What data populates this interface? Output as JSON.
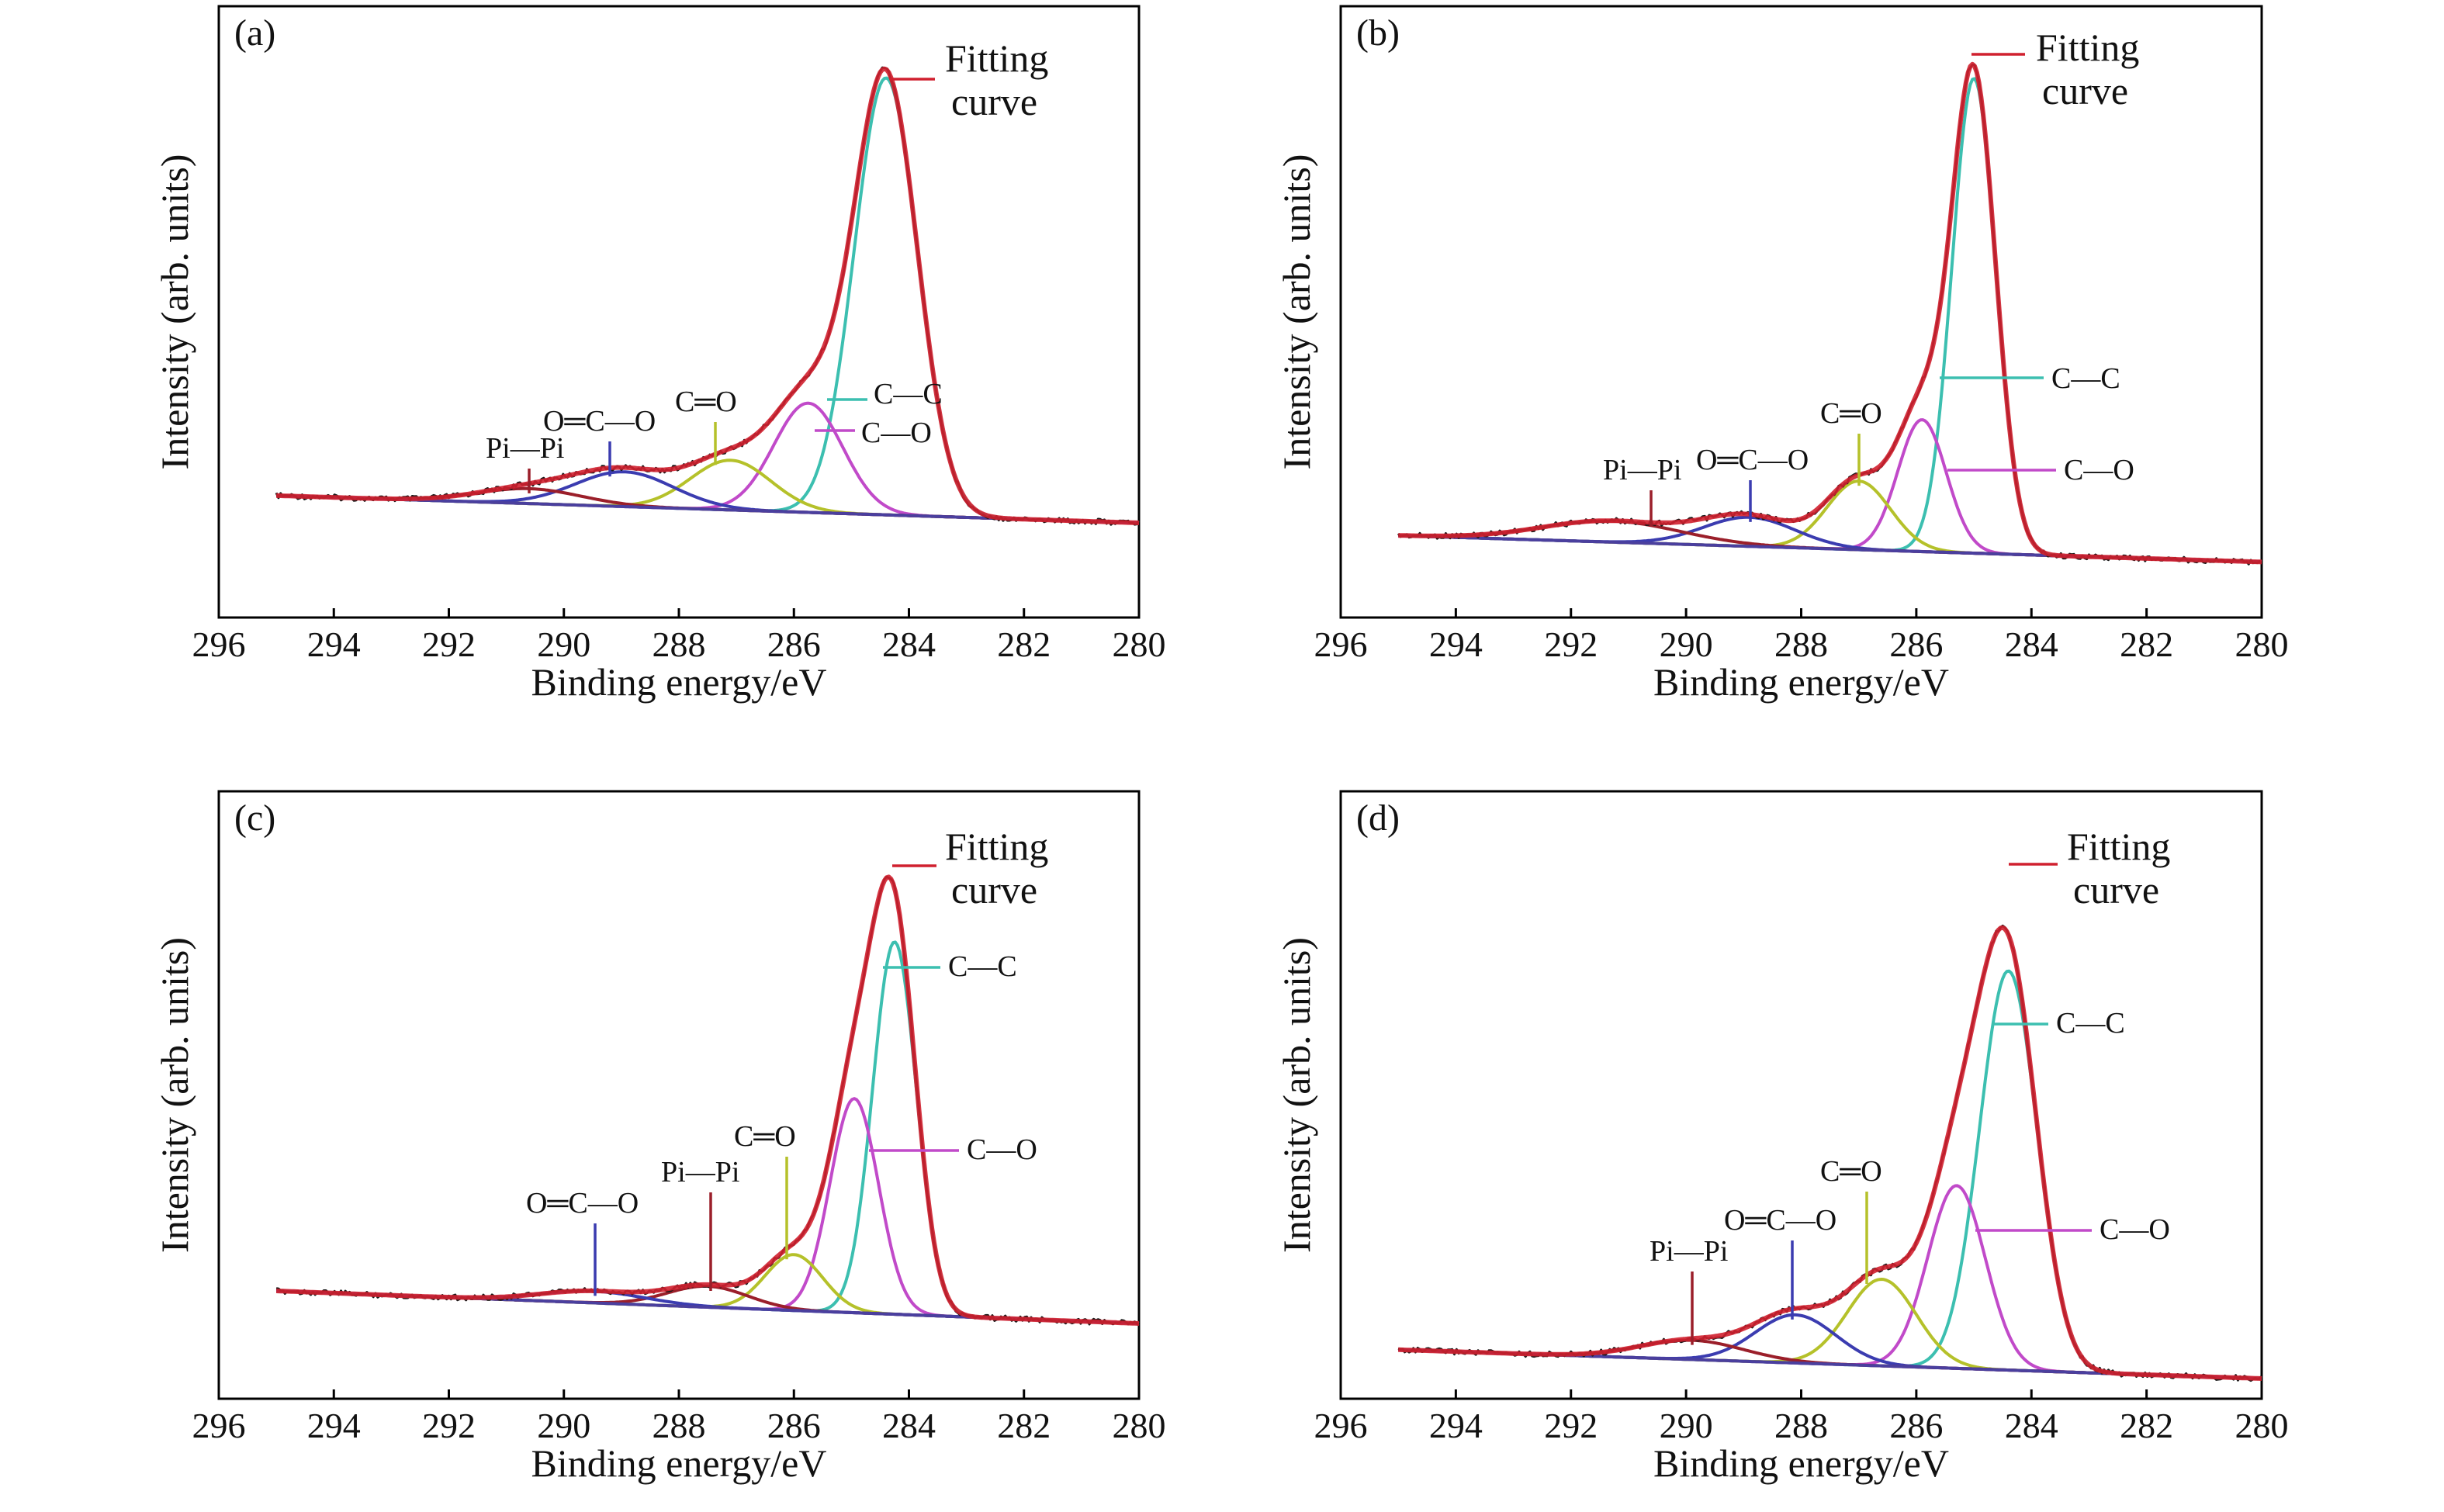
{
  "x_axis": {
    "label": "Binding energy/eV",
    "min": 280,
    "max": 296,
    "reversed": true,
    "ticks": [
      296,
      294,
      292,
      290,
      288,
      286,
      284,
      282,
      280
    ]
  },
  "y_axis": {
    "label": "Intensity (arb. units)"
  },
  "fit_label_lines": [
    "Fitting",
    "curve"
  ],
  "colors": {
    "fitting_curve": "#d0202f",
    "raw_data": "#1a1a1a",
    "baseline": "#4a3f9e",
    "C-C": "#3cbfb0",
    "C-O": "#c14ac9",
    "C=O": "#b5c12a",
    "O=C-O": "#3b3cb0",
    "Pi-Pi": "#9b1f2a"
  },
  "chart_data": [
    {
      "type": "line",
      "panel": "(a)",
      "xlim": [
        280,
        296
      ],
      "x_range_data": [
        280,
        295
      ],
      "baseline": {
        "y_at_295": 0.055,
        "y_at_280": 0.0
      },
      "series": [
        {
          "name": "C—C",
          "component": "C-C",
          "center": 284.4,
          "height": 0.88,
          "width": 0.55
        },
        {
          "name": "C—O",
          "component": "C-O",
          "center": 285.75,
          "height": 0.22,
          "width": 0.6
        },
        {
          "name": "C═O",
          "component": "C=O",
          "center": 287.1,
          "height": 0.1,
          "width": 0.7
        },
        {
          "name": "O═C—O",
          "component": "O=C-O",
          "center": 288.95,
          "height": 0.07,
          "width": 0.85
        },
        {
          "name": "Pi—Pi",
          "component": "Pi-Pi",
          "center": 290.6,
          "height": 0.03,
          "width": 0.9
        }
      ]
    },
    {
      "type": "line",
      "panel": "(b)",
      "xlim": [
        280,
        296
      ],
      "x_range_data": [
        280,
        295
      ],
      "baseline": {
        "y_at_295": 0.07,
        "y_at_280": 0.02
      },
      "series": [
        {
          "name": "C—C",
          "component": "C-C",
          "center": 285.0,
          "height": 0.9,
          "width": 0.38
        },
        {
          "name": "C—O",
          "component": "C-O",
          "center": 285.9,
          "height": 0.25,
          "width": 0.42
        },
        {
          "name": "C═O",
          "component": "C=O",
          "center": 287.0,
          "height": 0.13,
          "width": 0.55
        },
        {
          "name": "O═C—O",
          "component": "O=C-O",
          "center": 288.9,
          "height": 0.055,
          "width": 0.8
        },
        {
          "name": "Pi—Pi",
          "component": "Pi-Pi",
          "center": 291.3,
          "height": 0.04,
          "width": 1.2
        }
      ]
    },
    {
      "type": "line",
      "panel": "(c)",
      "xlim": [
        280,
        296
      ],
      "x_range_data": [
        280,
        295
      ],
      "baseline": {
        "y_at_295": 0.07,
        "y_at_280": 0.0
      },
      "series": [
        {
          "name": "C—C",
          "component": "C-C",
          "center": 284.25,
          "height": 0.8,
          "width": 0.38
        },
        {
          "name": "C—O",
          "component": "C-O",
          "center": 284.95,
          "height": 0.46,
          "width": 0.42
        },
        {
          "name": "C═O",
          "component": "C=O",
          "center": 286.0,
          "height": 0.12,
          "width": 0.5
        },
        {
          "name": "Pi—Pi",
          "component": "Pi-Pi",
          "center": 287.5,
          "height": 0.045,
          "width": 0.7
        },
        {
          "name": "O═C—O",
          "component": "O=C-O",
          "center": 289.5,
          "height": 0.025,
          "width": 0.9
        }
      ]
    },
    {
      "type": "line",
      "panel": "(d)",
      "xlim": [
        280,
        296
      ],
      "x_range_data": [
        280,
        295
      ],
      "baseline": {
        "y_at_295": 0.06,
        "y_at_280": 0.0
      },
      "series": [
        {
          "name": "C—C",
          "component": "C-C",
          "center": 284.4,
          "height": 0.83,
          "width": 0.5
        },
        {
          "name": "C—O",
          "component": "C-O",
          "center": 285.3,
          "height": 0.38,
          "width": 0.5
        },
        {
          "name": "C═O",
          "component": "C=O",
          "center": 286.6,
          "height": 0.18,
          "width": 0.6
        },
        {
          "name": "O═C—O",
          "component": "O=C-O",
          "center": 288.1,
          "height": 0.1,
          "width": 0.7
        },
        {
          "name": "Pi—Pi",
          "component": "Pi-Pi",
          "center": 289.9,
          "height": 0.04,
          "width": 0.9
        }
      ]
    }
  ]
}
